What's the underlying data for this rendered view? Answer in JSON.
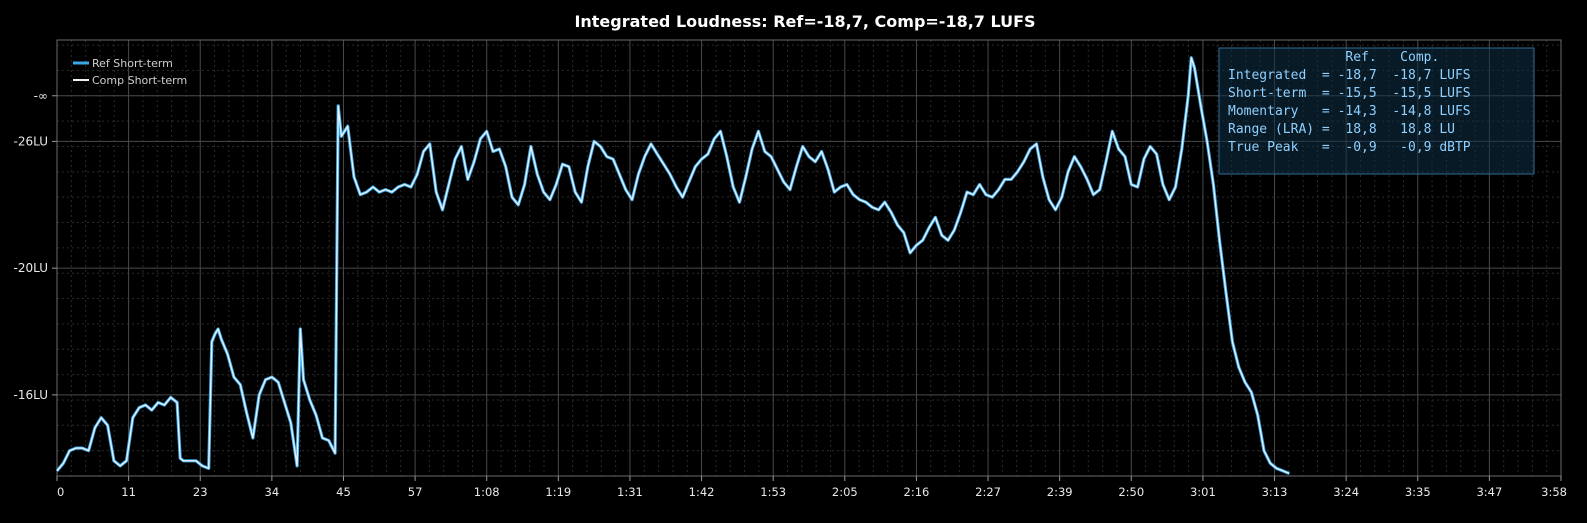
{
  "chart_data": {
    "type": "line",
    "title": "Integrated Loudness: Ref=-18,7, Comp=-18,7 LUFS",
    "xlabel": "",
    "ylabel": "",
    "x_tick_labels": [
      "0",
      "11",
      "23",
      "34",
      "45",
      "57",
      "1:08",
      "1:19",
      "1:31",
      "1:42",
      "1:53",
      "2:05",
      "2:16",
      "2:27",
      "2:39",
      "2:50",
      "3:01",
      "3:13",
      "3:24",
      "3:35",
      "3:47",
      "3:58"
    ],
    "y_tick_labels": [
      "-16LU",
      "-20LU",
      "-26LU",
      "-∞"
    ],
    "xlim": [
      0,
      238
    ],
    "ylim_display": [
      0,
      17.2
    ],
    "y_ticks_display": [
      3.2,
      8.2,
      13.2,
      15
    ],
    "grid": true,
    "legend_position": "top-left",
    "series": [
      {
        "name": "Ref Short-term",
        "color": "#39a7e8",
        "points": [
          [
            0,
            0.2
          ],
          [
            1,
            0.5
          ],
          [
            2,
            1.0
          ],
          [
            3,
            1.1
          ],
          [
            4,
            1.1
          ],
          [
            5,
            1.0
          ],
          [
            6,
            1.9
          ],
          [
            7,
            2.3
          ],
          [
            8,
            2.0
          ],
          [
            9,
            0.6
          ],
          [
            10,
            0.4
          ],
          [
            11,
            0.6
          ],
          [
            12,
            2.3
          ],
          [
            13,
            2.7
          ],
          [
            14,
            2.8
          ],
          [
            15,
            2.6
          ],
          [
            16,
            2.9
          ],
          [
            17,
            2.8
          ],
          [
            18,
            3.1
          ],
          [
            19,
            2.9
          ],
          [
            19.5,
            0.7
          ],
          [
            20,
            0.6
          ],
          [
            22,
            0.6
          ],
          [
            23,
            0.4
          ],
          [
            24,
            0.3
          ],
          [
            24.5,
            5.3
          ],
          [
            25,
            5.6
          ],
          [
            25.5,
            5.8
          ],
          [
            26,
            5.4
          ],
          [
            27,
            4.8
          ],
          [
            28,
            3.9
          ],
          [
            29,
            3.6
          ],
          [
            30,
            2.5
          ],
          [
            31,
            1.5
          ],
          [
            32,
            3.2
          ],
          [
            33,
            3.8
          ],
          [
            34,
            3.9
          ],
          [
            35,
            3.7
          ],
          [
            36,
            2.9
          ],
          [
            37,
            2.1
          ],
          [
            38,
            0.4
          ],
          [
            38.5,
            5.8
          ],
          [
            39,
            3.8
          ],
          [
            40,
            3.0
          ],
          [
            41,
            2.4
          ],
          [
            42,
            1.5
          ],
          [
            43,
            1.4
          ],
          [
            44,
            0.9
          ],
          [
            44.5,
            14.6
          ],
          [
            45,
            13.4
          ],
          [
            46,
            13.8
          ],
          [
            47,
            11.8
          ],
          [
            48,
            11.1
          ],
          [
            49,
            11.2
          ],
          [
            50,
            11.4
          ],
          [
            51,
            11.2
          ],
          [
            52,
            11.3
          ],
          [
            53,
            11.2
          ],
          [
            54,
            11.4
          ],
          [
            55,
            11.5
          ],
          [
            56,
            11.4
          ],
          [
            57,
            11.9
          ],
          [
            58,
            12.8
          ],
          [
            59,
            13.1
          ],
          [
            60,
            11.2
          ],
          [
            61,
            10.5
          ],
          [
            62,
            11.5
          ],
          [
            63,
            12.5
          ],
          [
            64,
            13.0
          ],
          [
            65,
            11.7
          ],
          [
            66,
            12.4
          ],
          [
            67,
            13.3
          ],
          [
            68,
            13.6
          ],
          [
            69,
            12.8
          ],
          [
            70,
            12.9
          ],
          [
            71,
            12.2
          ],
          [
            72,
            11.0
          ],
          [
            73,
            10.7
          ],
          [
            74,
            11.5
          ],
          [
            75,
            13.0
          ],
          [
            76,
            11.9
          ],
          [
            77,
            11.2
          ],
          [
            78,
            10.9
          ],
          [
            79,
            11.5
          ],
          [
            80,
            12.3
          ],
          [
            81,
            12.2
          ],
          [
            82,
            11.2
          ],
          [
            83,
            10.8
          ],
          [
            84,
            12.2
          ],
          [
            85,
            13.2
          ],
          [
            86,
            13.0
          ],
          [
            87,
            12.6
          ],
          [
            88,
            12.5
          ],
          [
            89,
            11.9
          ],
          [
            90,
            11.3
          ],
          [
            91,
            10.9
          ],
          [
            92,
            11.9
          ],
          [
            93,
            12.6
          ],
          [
            94,
            13.1
          ],
          [
            95,
            12.7
          ],
          [
            96,
            12.3
          ],
          [
            97,
            11.9
          ],
          [
            98,
            11.4
          ],
          [
            99,
            11.0
          ],
          [
            100,
            11.6
          ],
          [
            101,
            12.2
          ],
          [
            102,
            12.5
          ],
          [
            103,
            12.7
          ],
          [
            104,
            13.3
          ],
          [
            105,
            13.6
          ],
          [
            106,
            12.6
          ],
          [
            107,
            11.4
          ],
          [
            108,
            10.8
          ],
          [
            109,
            11.8
          ],
          [
            110,
            12.9
          ],
          [
            111,
            13.6
          ],
          [
            112,
            12.8
          ],
          [
            113,
            12.6
          ],
          [
            114,
            12.1
          ],
          [
            115,
            11.6
          ],
          [
            116,
            11.3
          ],
          [
            117,
            12.2
          ],
          [
            118,
            13.0
          ],
          [
            119,
            12.6
          ],
          [
            120,
            12.4
          ],
          [
            121,
            12.8
          ],
          [
            122,
            12.1
          ],
          [
            123,
            11.2
          ],
          [
            124,
            11.4
          ],
          [
            125,
            11.5
          ],
          [
            126,
            11.1
          ],
          [
            127,
            10.9
          ],
          [
            128,
            10.8
          ],
          [
            129,
            10.6
          ],
          [
            130,
            10.5
          ],
          [
            131,
            10.8
          ],
          [
            132,
            10.4
          ],
          [
            133,
            9.9
          ],
          [
            134,
            9.6
          ],
          [
            135,
            8.8
          ],
          [
            136,
            9.1
          ],
          [
            137,
            9.3
          ],
          [
            138,
            9.8
          ],
          [
            139,
            10.2
          ],
          [
            140,
            9.5
          ],
          [
            141,
            9.3
          ],
          [
            142,
            9.7
          ],
          [
            143,
            10.4
          ],
          [
            144,
            11.2
          ],
          [
            145,
            11.1
          ],
          [
            146,
            11.5
          ],
          [
            147,
            11.1
          ],
          [
            148,
            11.0
          ],
          [
            149,
            11.3
          ],
          [
            150,
            11.7
          ],
          [
            151,
            11.7
          ],
          [
            152,
            12.0
          ],
          [
            153,
            12.4
          ],
          [
            154,
            12.9
          ],
          [
            155,
            13.1
          ],
          [
            156,
            11.8
          ],
          [
            157,
            10.9
          ],
          [
            158,
            10.5
          ],
          [
            159,
            11.0
          ],
          [
            160,
            12.0
          ],
          [
            161,
            12.6
          ],
          [
            162,
            12.2
          ],
          [
            163,
            11.7
          ],
          [
            164,
            11.1
          ],
          [
            165,
            11.3
          ],
          [
            166,
            12.4
          ],
          [
            167,
            13.6
          ],
          [
            168,
            12.9
          ],
          [
            169,
            12.6
          ],
          [
            170,
            11.5
          ],
          [
            171,
            11.4
          ],
          [
            172,
            12.5
          ],
          [
            173,
            13.0
          ],
          [
            174,
            12.7
          ],
          [
            175,
            11.5
          ],
          [
            176,
            10.9
          ],
          [
            177,
            11.4
          ],
          [
            178,
            12.9
          ],
          [
            179,
            15.0
          ],
          [
            179.5,
            16.5
          ],
          [
            180,
            16.1
          ],
          [
            181,
            14.6
          ],
          [
            182,
            13.2
          ],
          [
            183,
            11.5
          ],
          [
            184,
            9.2
          ],
          [
            185,
            7.2
          ],
          [
            186,
            5.3
          ],
          [
            187,
            4.3
          ],
          [
            188,
            3.7
          ],
          [
            189,
            3.3
          ],
          [
            190,
            2.4
          ],
          [
            191,
            1.0
          ],
          [
            192,
            0.5
          ],
          [
            193,
            0.3
          ],
          [
            194,
            0.2
          ],
          [
            195,
            0.1
          ]
        ]
      },
      {
        "name": "Comp Short-term",
        "color": "#eaf2f8"
      }
    ]
  },
  "legend": {
    "ref_label": "Ref Short-term",
    "comp_label": "Comp Short-term",
    "ref_color": "#39a7e8",
    "comp_color": "#eaf2f8"
  },
  "stats_box": {
    "rows": [
      "               Ref.   Comp.",
      "Integrated  = -18,7  -18,7 LUFS",
      "Short-term  = -15,5  -15,5 LUFS",
      "Momentary   = -14,3  -14,8 LUFS",
      "Range (LRA) =  18,8   18,8 LU",
      "True Peak   =  -0,9   -0,9 dBTP"
    ]
  },
  "colors": {
    "background": "#000000",
    "grid_major": "#4a4a4a",
    "grid_minor": "#2a2a2a",
    "stats_border": "#2f6e96",
    "stats_fill": "#0f2f46"
  }
}
